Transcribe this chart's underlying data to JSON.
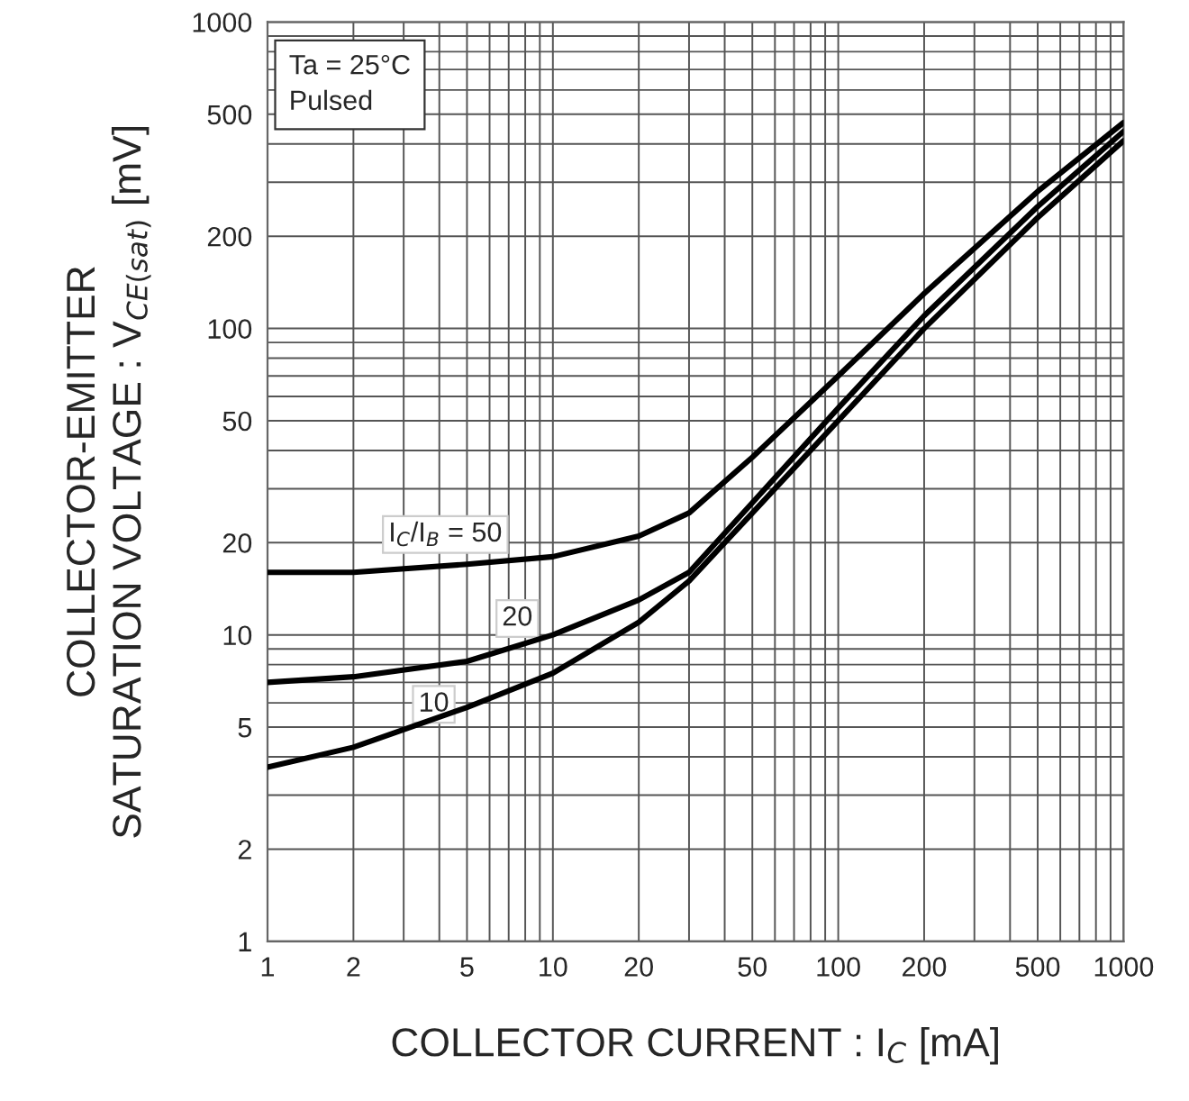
{
  "chart_data": {
    "type": "line",
    "xlabel": "COLLECTOR CURRENT : I$_{C}$ [mA]",
    "ylabel": "COLLECTOR-EMITTER\nSATURATION VOLTAGE : V$_{CE(sat)}$ [mV]",
    "log": "xy",
    "grid": true,
    "legend": false,
    "marker": "none",
    "line_style": "solid",
    "xlim": [
      1,
      1000
    ],
    "ylim": [
      1,
      1000
    ],
    "xticks": [
      1,
      2,
      {
        "value": 3,
        "label": null
      },
      {
        "value": 4,
        "label": null
      },
      5,
      {
        "value": 6,
        "label": null
      },
      {
        "value": 7,
        "label": null
      },
      {
        "value": 8,
        "label": null
      },
      {
        "value": 9,
        "label": null
      },
      10,
      20,
      {
        "value": 30,
        "label": null
      },
      {
        "value": 40,
        "label": null
      },
      50,
      {
        "value": 60,
        "label": null
      },
      {
        "value": 70,
        "label": null
      },
      {
        "value": 80,
        "label": null
      },
      {
        "value": 90,
        "label": null
      },
      100,
      200,
      {
        "value": 300,
        "label": null
      },
      {
        "value": 400,
        "label": null
      },
      500,
      {
        "value": 600,
        "label": null
      },
      {
        "value": 700,
        "label": null
      },
      {
        "value": 800,
        "label": null
      },
      {
        "value": 900,
        "label": null
      },
      1000
    ],
    "yticks": [
      1,
      2,
      {
        "value": 3,
        "label": null
      },
      {
        "value": 4,
        "label": null
      },
      5,
      {
        "value": 6,
        "label": null
      },
      {
        "value": 7,
        "label": null
      },
      {
        "value": 8,
        "label": null
      },
      {
        "value": 9,
        "label": null
      },
      10,
      20,
      {
        "value": 30,
        "label": null
      },
      {
        "value": 40,
        "label": null
      },
      50,
      {
        "value": 60,
        "label": null
      },
      {
        "value": 70,
        "label": null
      },
      {
        "value": 80,
        "label": null
      },
      {
        "value": 90,
        "label": null
      },
      100,
      200,
      {
        "value": 300,
        "label": null
      },
      {
        "value": 400,
        "label": null
      },
      500,
      {
        "value": 600,
        "label": null
      },
      {
        "value": 700,
        "label": null
      },
      {
        "value": 800,
        "label": null
      },
      {
        "value": 900,
        "label": null
      },
      1000
    ],
    "annotations": [
      "Ta = 25°C\nPulsed"
    ],
    "series": [
      {
        "name": "I$_{C}$/I$_{B}$ = 50",
        "color": "#000000",
        "x": [
          1,
          2,
          5,
          10,
          20,
          30,
          50,
          100,
          200,
          500,
          1000
        ],
        "values": [
          16,
          16,
          17,
          18,
          21,
          25,
          38,
          70,
          130,
          280,
          470
        ]
      },
      {
        "name": "20",
        "color": "#000000",
        "x": [
          1,
          2,
          5,
          10,
          20,
          30,
          50,
          100,
          200,
          500,
          1000
        ],
        "values": [
          7,
          7.3,
          8.2,
          10,
          13,
          16,
          27,
          55,
          110,
          250,
          440
        ]
      },
      {
        "name": "10",
        "color": "#000000",
        "x": [
          1,
          2,
          5,
          10,
          20,
          30,
          50,
          100,
          200,
          500,
          1000
        ],
        "values": [
          3.7,
          4.3,
          5.8,
          7.5,
          11,
          15,
          25,
          50,
          100,
          230,
          410
        ]
      }
    ]
  }
}
